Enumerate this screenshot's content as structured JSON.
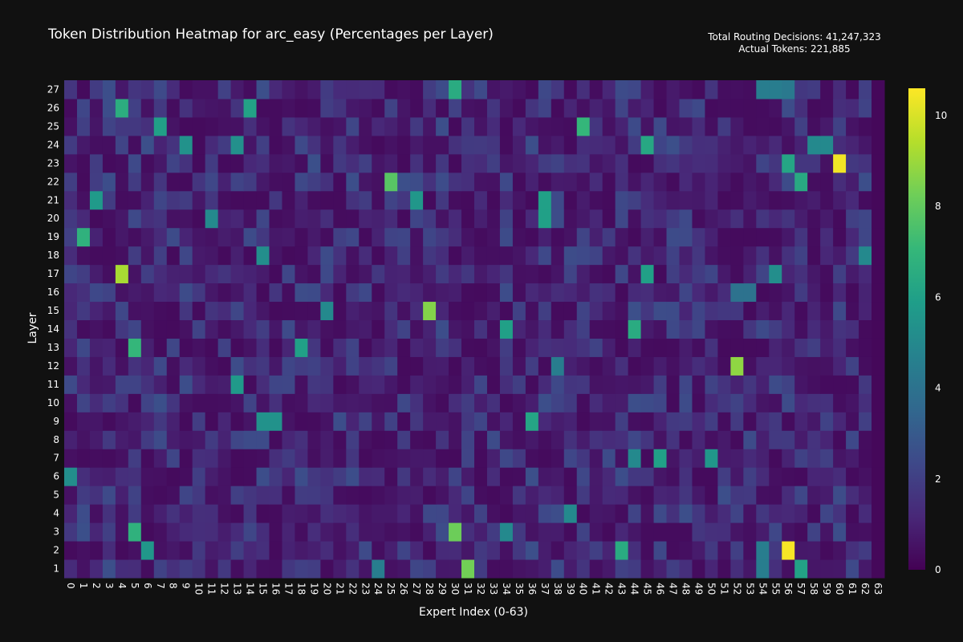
{
  "chart_data": {
    "type": "heatmap",
    "title": "Token Distribution Heatmap for arc_easy (Percentages per Layer)",
    "annotation_lines": [
      "Total Routing Decisions: 41,247,323",
      "Actual Tokens: 221,885"
    ],
    "xlabel": "Expert Index (0-63)",
    "ylabel": "Layer",
    "x": [
      0,
      1,
      2,
      3,
      4,
      5,
      6,
      7,
      8,
      9,
      10,
      11,
      12,
      13,
      14,
      15,
      16,
      17,
      18,
      19,
      20,
      21,
      22,
      23,
      24,
      25,
      26,
      27,
      28,
      29,
      30,
      31,
      32,
      33,
      34,
      35,
      36,
      37,
      38,
      39,
      40,
      41,
      42,
      43,
      44,
      45,
      46,
      47,
      48,
      49,
      50,
      51,
      52,
      53,
      54,
      55,
      56,
      57,
      58,
      59,
      60,
      61,
      62,
      63
    ],
    "y": [
      1,
      2,
      3,
      4,
      5,
      6,
      7,
      8,
      9,
      10,
      11,
      12,
      13,
      14,
      15,
      16,
      17,
      18,
      19,
      20,
      21,
      22,
      23,
      24,
      25,
      26,
      27
    ],
    "zlim": [
      0,
      10.6
    ],
    "colorscale": "Viridis",
    "colorbar_ticks": [
      0,
      2,
      4,
      6,
      8,
      10
    ],
    "notable_values": [
      {
        "layer": 2,
        "expert": 56,
        "value": 10.5
      },
      {
        "layer": 23,
        "expert": 60,
        "value": 10.4
      },
      {
        "layer": 17,
        "expert": 4,
        "value": 9.2
      },
      {
        "layer": 12,
        "expert": 52,
        "value": 8.8
      },
      {
        "layer": 15,
        "expert": 28,
        "value": 8.6
      },
      {
        "layer": 1,
        "expert": 31,
        "value": 8.3
      },
      {
        "layer": 3,
        "expert": 30,
        "value": 8.2
      },
      {
        "layer": 22,
        "expert": 25,
        "value": 7.8
      },
      {
        "layer": 25,
        "expert": 40,
        "value": 7.0
      },
      {
        "layer": 13,
        "expert": 5,
        "value": 7.0
      },
      {
        "layer": 3,
        "expert": 5,
        "value": 6.8
      },
      {
        "layer": 19,
        "expert": 1,
        "value": 6.8
      },
      {
        "layer": 26,
        "expert": 4,
        "value": 6.6
      },
      {
        "layer": 27,
        "expert": 30,
        "value": 6.5
      },
      {
        "layer": 2,
        "expert": 43,
        "value": 6.5
      },
      {
        "layer": 14,
        "expert": 44,
        "value": 6.5
      },
      {
        "layer": 24,
        "expert": 45,
        "value": 6.3
      },
      {
        "layer": 22,
        "expert": 57,
        "value": 6.4
      },
      {
        "layer": 23,
        "expert": 56,
        "value": 6.2
      },
      {
        "layer": 1,
        "expert": 57,
        "value": 6.1
      },
      {
        "layer": 17,
        "expert": 45,
        "value": 6.0
      },
      {
        "layer": 13,
        "expert": 18,
        "value": 6.0
      },
      {
        "layer": 14,
        "expert": 34,
        "value": 6.0
      },
      {
        "layer": 7,
        "expert": 46,
        "value": 6.0
      },
      {
        "layer": 9,
        "expert": 36,
        "value": 6.2
      },
      {
        "layer": 26,
        "expert": 14,
        "value": 6.1
      },
      {
        "layer": 25,
        "expert": 7,
        "value": 6.0
      },
      {
        "layer": 21,
        "expert": 37,
        "value": 6.0
      },
      {
        "layer": 20,
        "expert": 37,
        "value": 6.0
      },
      {
        "layer": 11,
        "expert": 13,
        "value": 5.7
      },
      {
        "layer": 2,
        "expert": 6,
        "value": 5.6
      },
      {
        "layer": 7,
        "expert": 50,
        "value": 5.6
      },
      {
        "layer": 21,
        "expert": 2,
        "value": 5.7
      },
      {
        "layer": 21,
        "expert": 27,
        "value": 5.6
      },
      {
        "layer": 6,
        "expert": 0,
        "value": 5.2
      },
      {
        "layer": 9,
        "expert": 15,
        "value": 5.4
      },
      {
        "layer": 9,
        "expert": 16,
        "value": 5.4
      },
      {
        "layer": 15,
        "expert": 20,
        "value": 5.0
      },
      {
        "layer": 18,
        "expert": 15,
        "value": 5.2
      },
      {
        "layer": 24,
        "expert": 9,
        "value": 5.4
      },
      {
        "layer": 24,
        "expert": 13,
        "value": 5.3
      },
      {
        "layer": 24,
        "expert": 58,
        "value": 5.0
      },
      {
        "layer": 24,
        "expert": 59,
        "value": 5.0
      },
      {
        "layer": 7,
        "expert": 44,
        "value": 5.0
      },
      {
        "layer": 4,
        "expert": 39,
        "value": 5.0
      },
      {
        "layer": 17,
        "expert": 55,
        "value": 5.2
      },
      {
        "layer": 18,
        "expert": 62,
        "value": 5.0
      },
      {
        "layer": 20,
        "expert": 11,
        "value": 5.0
      },
      {
        "layer": 3,
        "expert": 34,
        "value": 5.0
      },
      {
        "layer": 27,
        "expert": 54,
        "value": 4.5
      },
      {
        "layer": 27,
        "expert": 55,
        "value": 4.5
      },
      {
        "layer": 27,
        "expert": 56,
        "value": 4.3
      },
      {
        "layer": 1,
        "expert": 24,
        "value": 4.5
      },
      {
        "layer": 1,
        "expert": 54,
        "value": 4.5
      },
      {
        "layer": 2,
        "expert": 54,
        "value": 4.5
      },
      {
        "layer": 12,
        "expert": 38,
        "value": 4.5
      },
      {
        "layer": 16,
        "expert": 52,
        "value": 4.0
      },
      {
        "layer": 16,
        "expert": 53,
        "value": 4.0
      }
    ],
    "background_range": [
      0.3,
      2.6
    ]
  }
}
